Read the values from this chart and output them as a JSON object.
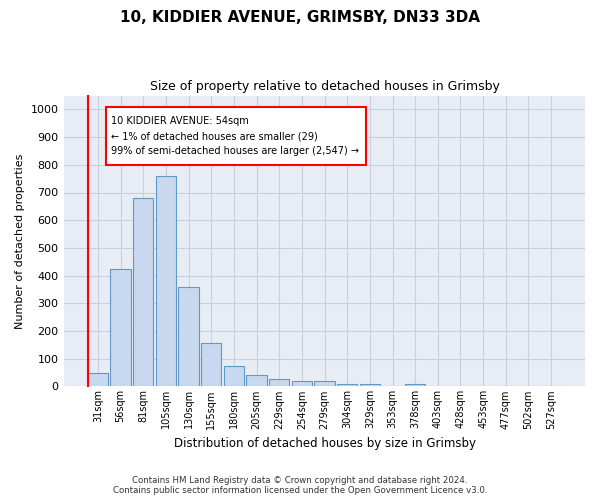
{
  "title": "10, KIDDIER AVENUE, GRIMSBY, DN33 3DA",
  "subtitle": "Size of property relative to detached houses in Grimsby",
  "xlabel": "Distribution of detached houses by size in Grimsby",
  "ylabel": "Number of detached properties",
  "bar_color": "#c8d8ee",
  "bar_edge_color": "#6098c8",
  "categories": [
    "31sqm",
    "56sqm",
    "81sqm",
    "105sqm",
    "130sqm",
    "155sqm",
    "180sqm",
    "205sqm",
    "229sqm",
    "254sqm",
    "279sqm",
    "304sqm",
    "329sqm",
    "353sqm",
    "378sqm",
    "403sqm",
    "428sqm",
    "453sqm",
    "477sqm",
    "502sqm",
    "527sqm"
  ],
  "values": [
    50,
    425,
    680,
    760,
    360,
    155,
    75,
    40,
    28,
    18,
    18,
    10,
    10,
    0,
    10,
    0,
    0,
    0,
    0,
    0,
    0
  ],
  "ylim": [
    0,
    1050
  ],
  "yticks": [
    0,
    100,
    200,
    300,
    400,
    500,
    600,
    700,
    800,
    900,
    1000
  ],
  "annotation_line1": "10 KIDDIER AVENUE: 54sqm",
  "annotation_line2": "← 1% of detached houses are smaller (29)",
  "annotation_line3": "99% of semi-detached houses are larger (2,547) →",
  "footer_line1": "Contains HM Land Registry data © Crown copyright and database right 2024.",
  "footer_line2": "Contains public sector information licensed under the Open Government Licence v3.0.",
  "grid_color": "#c8d0e0",
  "background_color": "#e8edf5"
}
